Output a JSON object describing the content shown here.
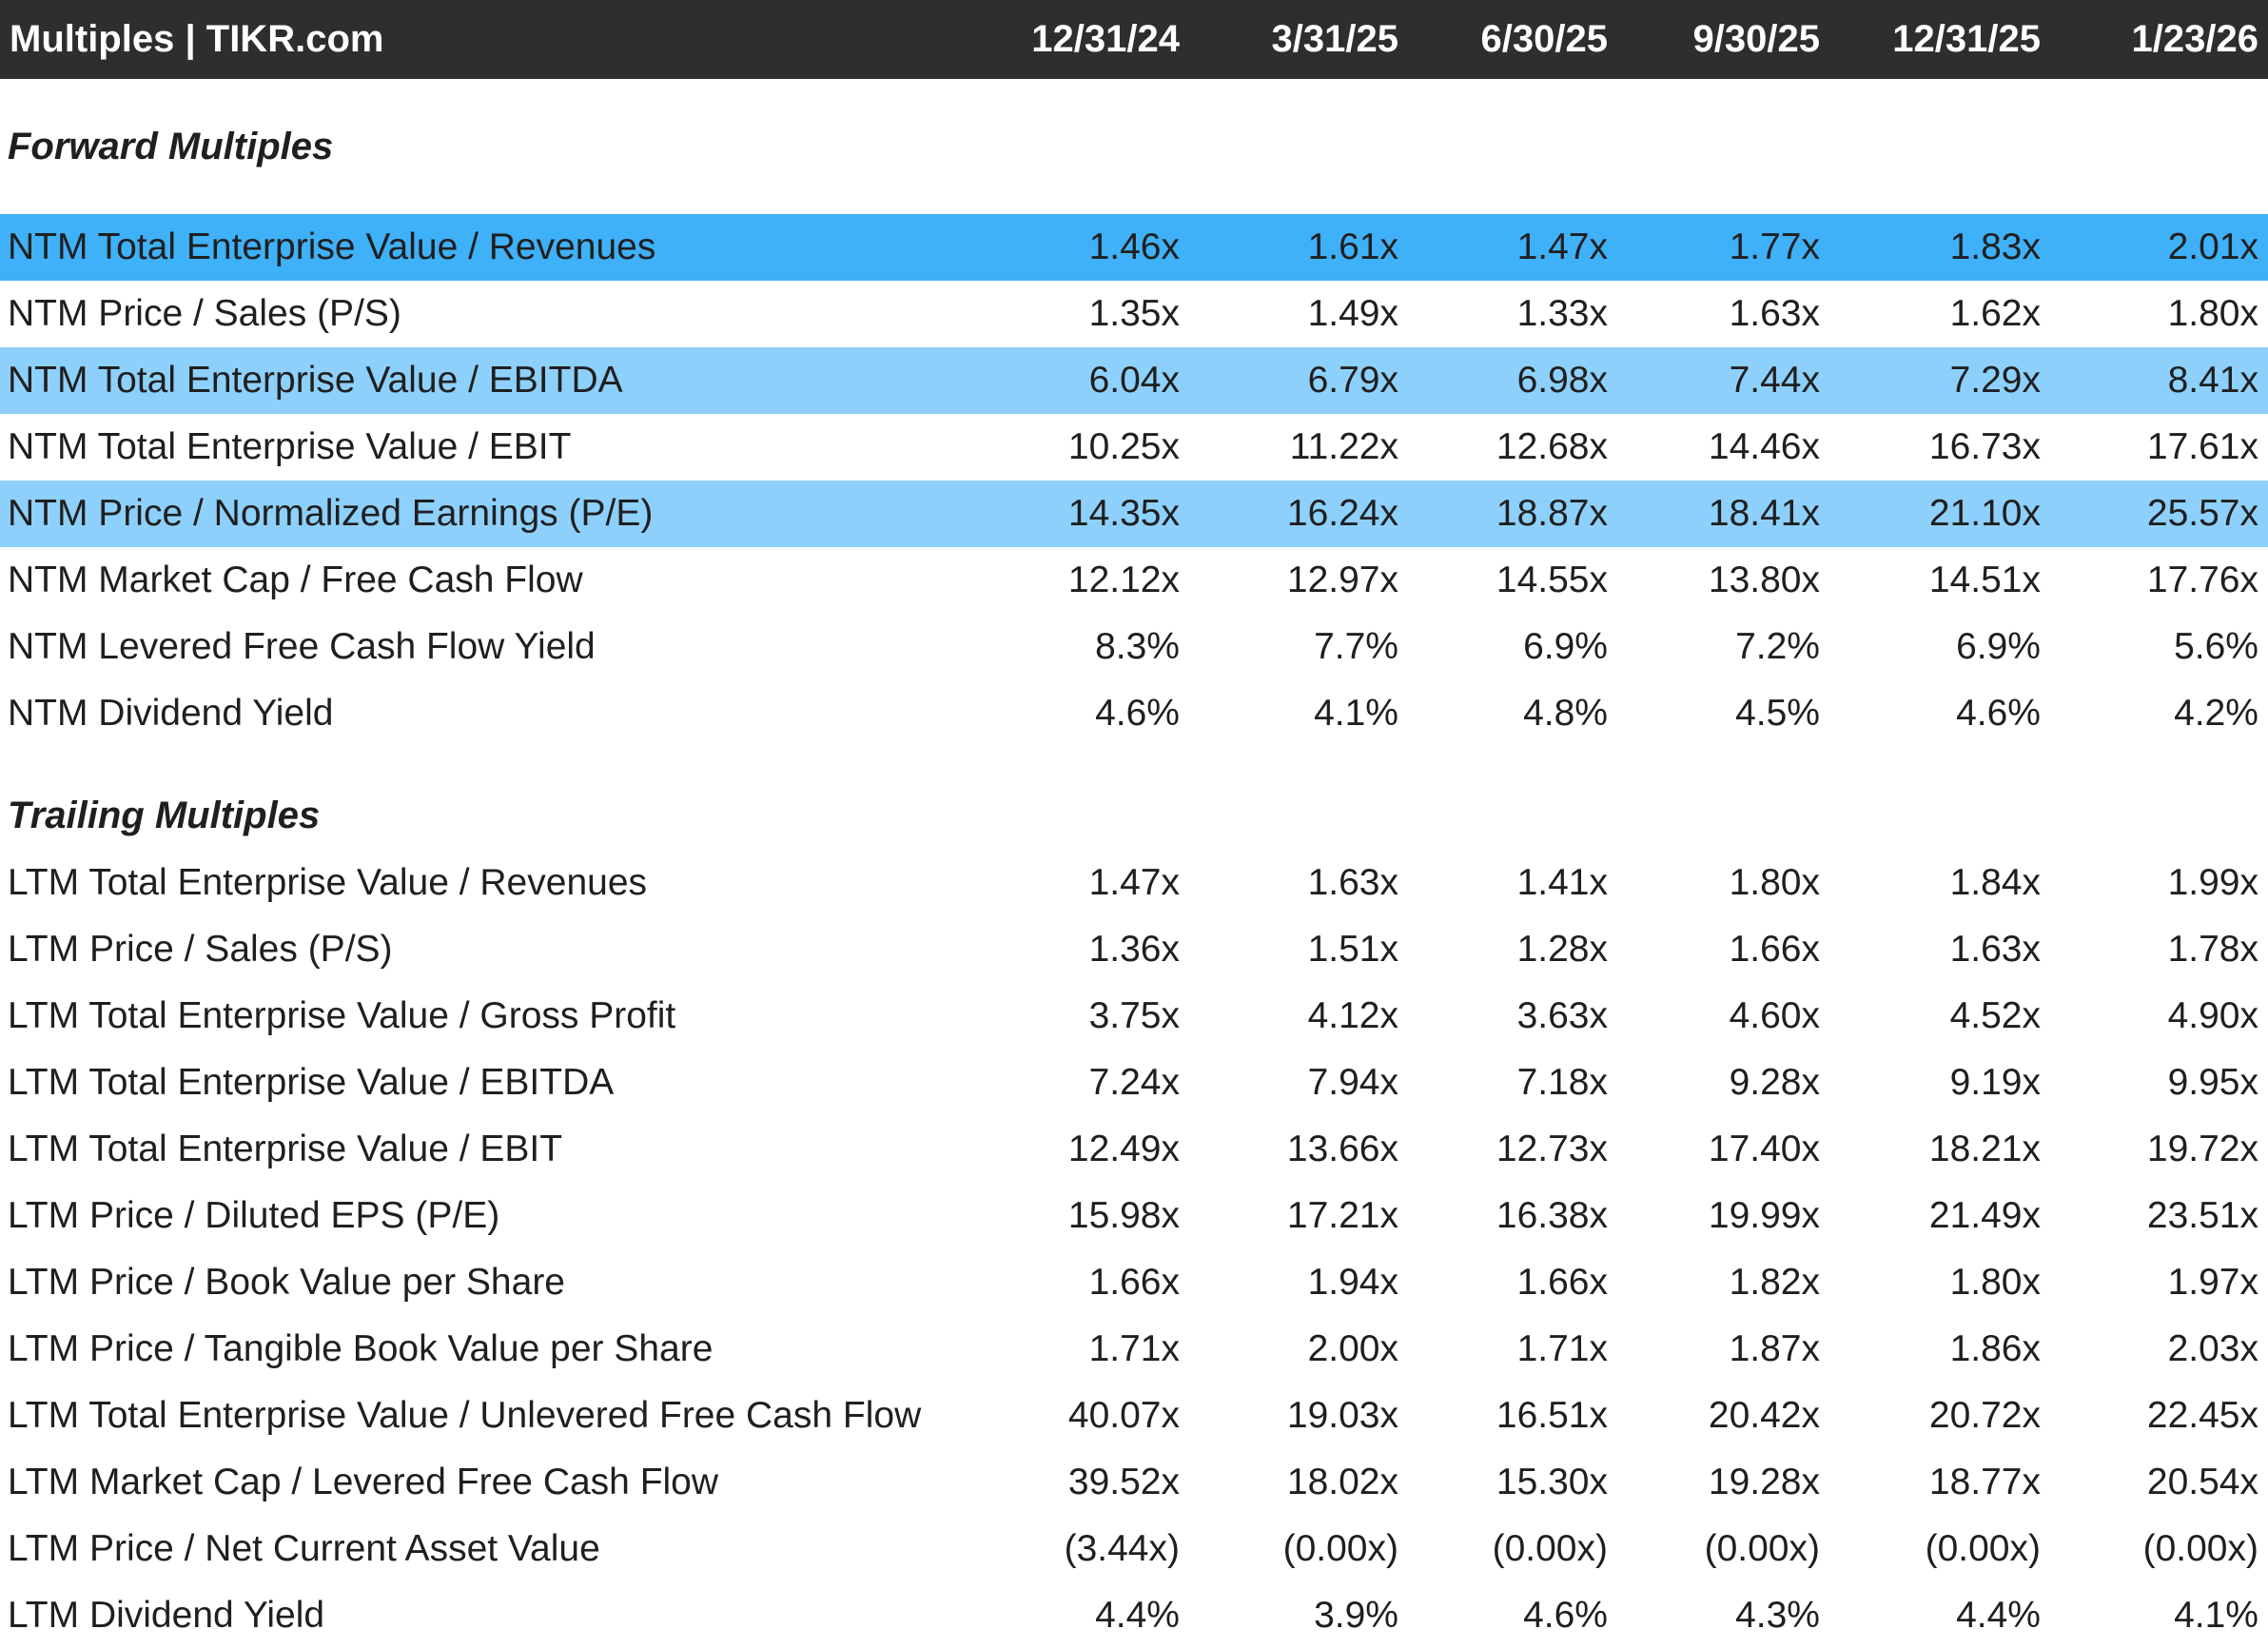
{
  "header": {
    "title": "Multiples | TIKR.com",
    "columns": [
      "12/31/24",
      "3/31/25",
      "6/30/25",
      "9/30/25",
      "12/31/25",
      "1/23/26"
    ]
  },
  "sections": [
    {
      "title": "Forward Multiples",
      "rows": [
        {
          "label": "NTM Total Enterprise Value / Revenues",
          "values": [
            "1.46x",
            "1.61x",
            "1.47x",
            "1.77x",
            "1.83x",
            "2.01x"
          ],
          "highlight": "strong"
        },
        {
          "label": "NTM Price / Sales (P/S)",
          "values": [
            "1.35x",
            "1.49x",
            "1.33x",
            "1.63x",
            "1.62x",
            "1.80x"
          ],
          "highlight": "none"
        },
        {
          "label": "NTM Total Enterprise Value / EBITDA",
          "values": [
            "6.04x",
            "6.79x",
            "6.98x",
            "7.44x",
            "7.29x",
            "8.41x"
          ],
          "highlight": "light"
        },
        {
          "label": "NTM Total Enterprise Value / EBIT",
          "values": [
            "10.25x",
            "11.22x",
            "12.68x",
            "14.46x",
            "16.73x",
            "17.61x"
          ],
          "highlight": "none"
        },
        {
          "label": "NTM Price / Normalized Earnings (P/E)",
          "values": [
            "14.35x",
            "16.24x",
            "18.87x",
            "18.41x",
            "21.10x",
            "25.57x"
          ],
          "highlight": "light"
        },
        {
          "label": "NTM Market Cap / Free Cash Flow",
          "values": [
            "12.12x",
            "12.97x",
            "14.55x",
            "13.80x",
            "14.51x",
            "17.76x"
          ],
          "highlight": "none"
        },
        {
          "label": "NTM Levered Free Cash Flow Yield",
          "values": [
            "8.3%",
            "7.7%",
            "6.9%",
            "7.2%",
            "6.9%",
            "5.6%"
          ],
          "highlight": "none"
        },
        {
          "label": "NTM Dividend Yield",
          "values": [
            "4.6%",
            "4.1%",
            "4.8%",
            "4.5%",
            "4.6%",
            "4.2%"
          ],
          "highlight": "none"
        }
      ]
    },
    {
      "title": "Trailing Multiples",
      "rows": [
        {
          "label": "LTM Total Enterprise Value / Revenues",
          "values": [
            "1.47x",
            "1.63x",
            "1.41x",
            "1.80x",
            "1.84x",
            "1.99x"
          ],
          "highlight": "none"
        },
        {
          "label": "LTM Price / Sales (P/S)",
          "values": [
            "1.36x",
            "1.51x",
            "1.28x",
            "1.66x",
            "1.63x",
            "1.78x"
          ],
          "highlight": "none"
        },
        {
          "label": "LTM Total Enterprise Value / Gross Profit",
          "values": [
            "3.75x",
            "4.12x",
            "3.63x",
            "4.60x",
            "4.52x",
            "4.90x"
          ],
          "highlight": "none"
        },
        {
          "label": "LTM Total Enterprise Value / EBITDA",
          "values": [
            "7.24x",
            "7.94x",
            "7.18x",
            "9.28x",
            "9.19x",
            "9.95x"
          ],
          "highlight": "none"
        },
        {
          "label": "LTM Total Enterprise Value / EBIT",
          "values": [
            "12.49x",
            "13.66x",
            "12.73x",
            "17.40x",
            "18.21x",
            "19.72x"
          ],
          "highlight": "none"
        },
        {
          "label": "LTM Price / Diluted EPS (P/E)",
          "values": [
            "15.98x",
            "17.21x",
            "16.38x",
            "19.99x",
            "21.49x",
            "23.51x"
          ],
          "highlight": "none"
        },
        {
          "label": "LTM Price / Book Value per Share",
          "values": [
            "1.66x",
            "1.94x",
            "1.66x",
            "1.82x",
            "1.80x",
            "1.97x"
          ],
          "highlight": "none"
        },
        {
          "label": "LTM Price / Tangible Book Value per Share",
          "values": [
            "1.71x",
            "2.00x",
            "1.71x",
            "1.87x",
            "1.86x",
            "2.03x"
          ],
          "highlight": "none"
        },
        {
          "label": "LTM Total Enterprise Value / Unlevered Free Cash Flow",
          "values": [
            "40.07x",
            "19.03x",
            "16.51x",
            "20.42x",
            "20.72x",
            "22.45x"
          ],
          "highlight": "none"
        },
        {
          "label": "LTM Market Cap / Levered Free Cash Flow",
          "values": [
            "39.52x",
            "18.02x",
            "15.30x",
            "19.28x",
            "18.77x",
            "20.54x"
          ],
          "highlight": "none"
        },
        {
          "label": "LTM Price / Net Current Asset Value",
          "values": [
            "(3.44x)",
            "(0.00x)",
            "(0.00x)",
            "(0.00x)",
            "(0.00x)",
            "(0.00x)"
          ],
          "highlight": "none"
        },
        {
          "label": "LTM Dividend Yield",
          "values": [
            "4.4%",
            "3.9%",
            "4.6%",
            "4.3%",
            "4.4%",
            "4.1%"
          ],
          "highlight": "none"
        }
      ]
    }
  ],
  "colors": {
    "header_bg": "#2e2e2e",
    "highlight_strong": "#3eb1f9",
    "highlight_light": "#8dd0fb",
    "text": "#1f1f1f"
  }
}
